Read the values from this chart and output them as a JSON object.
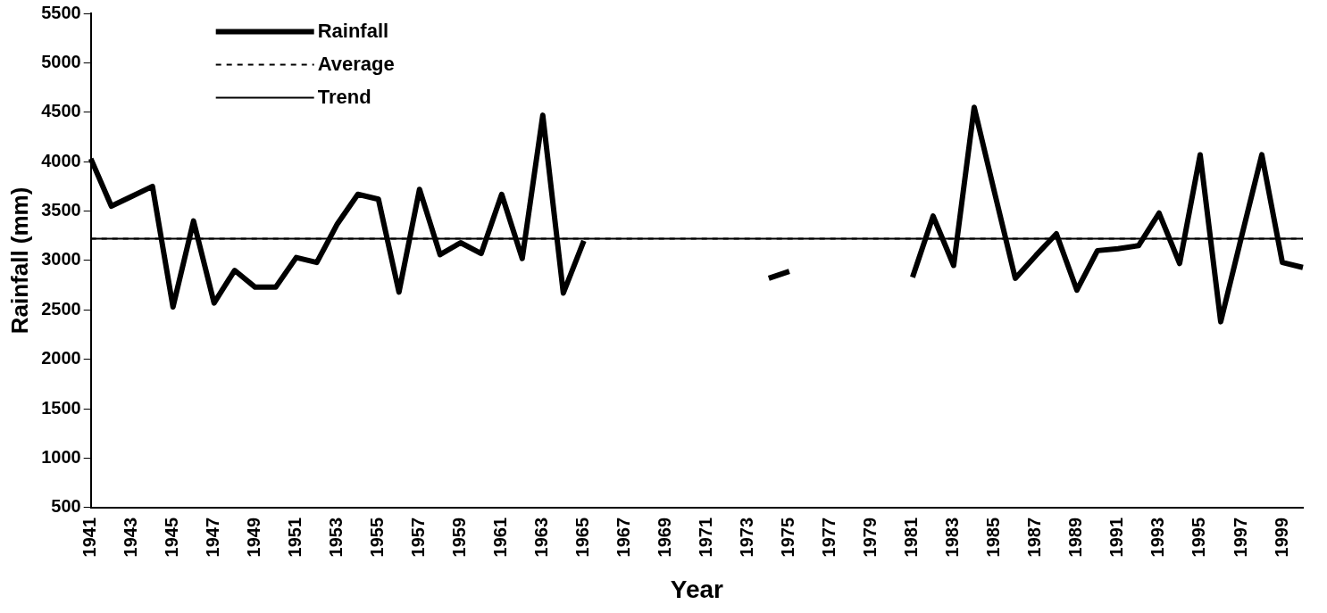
{
  "chart_data": {
    "type": "line",
    "xlabel": "Year",
    "ylabel": "Rainfall (mm)",
    "categories": [
      "1941",
      null,
      "1943",
      null,
      "1945",
      null,
      "1947",
      null,
      "1949",
      null,
      "1951",
      null,
      "1953",
      null,
      "1955",
      null,
      "1957",
      null,
      "1959",
      null,
      "1961",
      null,
      "1963",
      null,
      "1965",
      null,
      "1967",
      null,
      "1969",
      null,
      "1971",
      null,
      "1973",
      null,
      "1975",
      null,
      "1977",
      null,
      "1979",
      null,
      "1981",
      null,
      "1983",
      null,
      "1985",
      null,
      "1987",
      null,
      "1989",
      null,
      "1991",
      null,
      "1993",
      null,
      "1995",
      null,
      "1997",
      null,
      "1999",
      null
    ],
    "ylim": [
      500,
      5500
    ],
    "yticks": [
      500,
      1000,
      1500,
      2000,
      2500,
      3000,
      3500,
      4000,
      4500,
      5000,
      5500
    ],
    "grid": false,
    "legend": "top left",
    "marker": "none",
    "series": [
      {
        "name": "Rainfall",
        "color": "#000000",
        "line_style": "solid",
        "values": [
          4030,
          3550,
          3650,
          3750,
          2530,
          3400,
          2570,
          2900,
          2730,
          2730,
          3030,
          2980,
          3370,
          3670,
          3620,
          2680,
          3720,
          3060,
          3180,
          3070,
          3670,
          3020,
          4470,
          2670,
          3200,
          null,
          null,
          null,
          null,
          null,
          null,
          null,
          null,
          2820,
          2890,
          null,
          null,
          null,
          null,
          null,
          2830,
          3450,
          2950,
          4550,
          3680,
          2820,
          3050,
          3270,
          2700,
          3100,
          3120,
          3150,
          3480,
          2970,
          4070,
          2380,
          3230,
          4070,
          2980,
          2930
        ]
      },
      {
        "name": "Average",
        "color": "#000000",
        "line_style": "dashed",
        "values": [
          3220,
          3220,
          3220,
          3220,
          3220,
          3220,
          3220,
          3220,
          3220,
          3220,
          3220,
          3220,
          3220,
          3220,
          3220,
          3220,
          3220,
          3220,
          3220,
          3220,
          3220,
          3220,
          3220,
          3220,
          3220,
          3220,
          3220,
          3220,
          3220,
          3220,
          3220,
          3220,
          3220,
          3220,
          3220,
          3220,
          3220,
          3220,
          3220,
          3220,
          3220,
          3220,
          3220,
          3220,
          3220,
          3220,
          3220,
          3220,
          3220,
          3220,
          3220,
          3220,
          3220,
          3220,
          3220,
          3220,
          3220,
          3220,
          3220,
          3220
        ]
      },
      {
        "name": "Trend",
        "color": "#000000",
        "line_style": "solid",
        "values": [
          3220,
          3220,
          3220,
          3220,
          3220,
          3220,
          3220,
          3220,
          3220,
          3220,
          3220,
          3220,
          3220,
          3220,
          3220,
          3220,
          3220,
          3220,
          3220,
          3220,
          3220,
          3220,
          3220,
          3220,
          3220,
          3220,
          3220,
          3220,
          3220,
          3220,
          3220,
          3220,
          3220,
          3220,
          3220,
          3220,
          3220,
          3220,
          3220,
          3220,
          3220,
          3220,
          3220,
          3220,
          3220,
          3220,
          3220,
          3220,
          3220,
          3220,
          3220,
          3220,
          3220,
          3220,
          3220,
          3220,
          3220,
          3220,
          3220,
          3220
        ]
      }
    ]
  }
}
